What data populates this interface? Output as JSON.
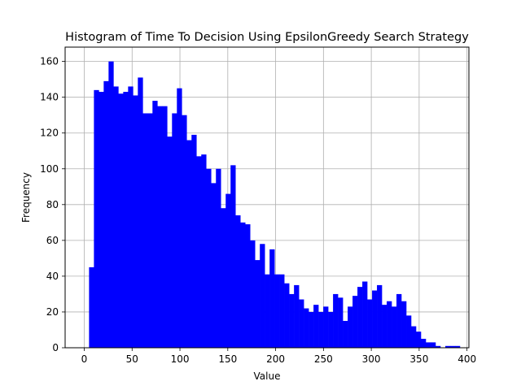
{
  "chart_data": {
    "type": "bar",
    "title": "Histogram of Time To Decision Using EpsilonGreedy Search Strategy",
    "xlabel": "Value",
    "ylabel": "Frequency",
    "xlim": [
      -20,
      402
    ],
    "ylim": [
      0,
      168
    ],
    "grid": true,
    "bar_color": "#0000ff",
    "bin_width": 5.1,
    "bin_start": 5.0,
    "x_ticks": [
      0,
      50,
      100,
      150,
      200,
      250,
      300,
      350,
      400
    ],
    "y_ticks": [
      0,
      20,
      40,
      60,
      80,
      100,
      120,
      140,
      160
    ],
    "values": [
      45,
      144,
      143,
      149,
      160,
      146,
      142,
      143,
      146,
      141,
      151,
      131,
      131,
      138,
      135,
      135,
      118,
      131,
      145,
      130,
      116,
      119,
      107,
      108,
      100,
      92,
      100,
      78,
      86,
      102,
      74,
      70,
      69,
      60,
      49,
      58,
      41,
      55,
      41,
      41,
      36,
      30,
      35,
      27,
      22,
      20,
      24,
      20,
      23,
      20,
      30,
      28,
      15,
      23,
      29,
      34,
      37,
      27,
      32,
      35,
      24,
      26,
      23,
      30,
      26,
      18,
      12,
      9,
      5,
      3,
      3,
      1,
      0,
      1,
      1,
      1
    ]
  }
}
